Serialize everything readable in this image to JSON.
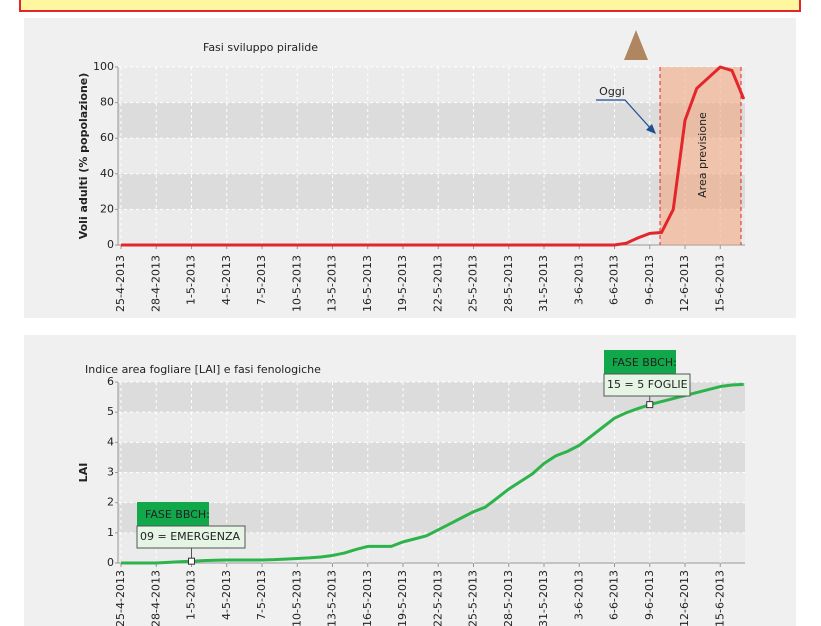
{
  "chart_data": [
    {
      "type": "line",
      "title": "Fasi sviluppo piralide",
      "y_label": "Voli adulti (% popolazione)",
      "categories": [
        "25-4-2013",
        null,
        null,
        "28-4-2013",
        null,
        null,
        "1-5-2013",
        null,
        null,
        "4-5-2013",
        null,
        null,
        "7-5-2013",
        null,
        null,
        "10-5-2013",
        null,
        null,
        "13-5-2013",
        null,
        null,
        "16-5-2013",
        null,
        null,
        "19-5-2013",
        null,
        null,
        "22-5-2013",
        null,
        null,
        "25-5-2013",
        null,
        null,
        "28-5-2013",
        null,
        null,
        "31-5-2013",
        null,
        null,
        "3-6-2013",
        null,
        null,
        "6-6-2013",
        null,
        null,
        "9-6-2013",
        null,
        null,
        "12-6-2013",
        null,
        null,
        "15-6-2013",
        null,
        null
      ],
      "series": [
        {
          "color": "#e3262b",
          "values": [
            0,
            0,
            0,
            0,
            0,
            0,
            0,
            0,
            0,
            0,
            0,
            0,
            0,
            0,
            0,
            0,
            0,
            0,
            0,
            0,
            0,
            0,
            0,
            0,
            0,
            0,
            0,
            0,
            0,
            0,
            0,
            0,
            0,
            0,
            0,
            0,
            0,
            0,
            0,
            0,
            0,
            0,
            0,
            1,
            4,
            6.5,
            7,
            20,
            70,
            88,
            94,
            100,
            98,
            82
          ]
        }
      ],
      "ylim": [
        0,
        100
      ],
      "yticks": [
        0,
        20,
        40,
        60,
        80,
        100
      ],
      "grid": true,
      "annotations": [
        "Oggi",
        "Area previsione"
      ]
    },
    {
      "type": "line",
      "title": "Indice area fogliare [LAI] e fasi fenologiche",
      "y_label": "LAI",
      "categories": [
        "25-4-2013",
        null,
        null,
        "28-4-2013",
        null,
        null,
        "1-5-2013",
        null,
        null,
        "4-5-2013",
        null,
        null,
        "7-5-2013",
        null,
        null,
        "10-5-2013",
        null,
        null,
        "13-5-2013",
        null,
        null,
        "16-5-2013",
        null,
        null,
        "19-5-2013",
        null,
        null,
        "22-5-2013",
        null,
        null,
        "25-5-2013",
        null,
        null,
        "28-5-2013",
        null,
        null,
        "31-5-2013",
        null,
        null,
        "3-6-2013",
        null,
        null,
        "6-6-2013",
        null,
        null,
        "9-6-2013",
        null,
        null,
        "12-6-2013",
        null,
        null,
        "15-6-2013",
        null,
        null
      ],
      "series": [
        {
          "color": "#2db34a",
          "values": [
            0,
            0,
            0,
            0,
            0.02,
            0.04,
            0.06,
            0.08,
            0.09,
            0.1,
            0.1,
            0.1,
            0.1,
            0.11,
            0.13,
            0.15,
            0.17,
            0.2,
            0.25,
            0.33,
            0.45,
            0.55,
            0.55,
            0.55,
            0.7,
            0.8,
            0.9,
            1.1,
            1.3,
            1.5,
            1.7,
            1.85,
            2.15,
            2.45,
            2.7,
            2.95,
            3.3,
            3.55,
            3.7,
            3.9,
            4.2,
            4.5,
            4.8,
            4.98,
            5.12,
            5.25,
            5.35,
            5.45,
            5.55,
            5.65,
            5.75,
            5.85,
            5.9,
            5.92
          ]
        }
      ],
      "ylim": [
        0,
        6
      ],
      "yticks": [
        0,
        1,
        2,
        3,
        4,
        5,
        6
      ],
      "grid": true,
      "annotations": [
        {
          "title": "FASE BBCH:",
          "text": "09 = EMERGENZA"
        },
        {
          "title": "FASE BBCH:",
          "text": "15 = 5 FOGLIE"
        }
      ]
    }
  ]
}
